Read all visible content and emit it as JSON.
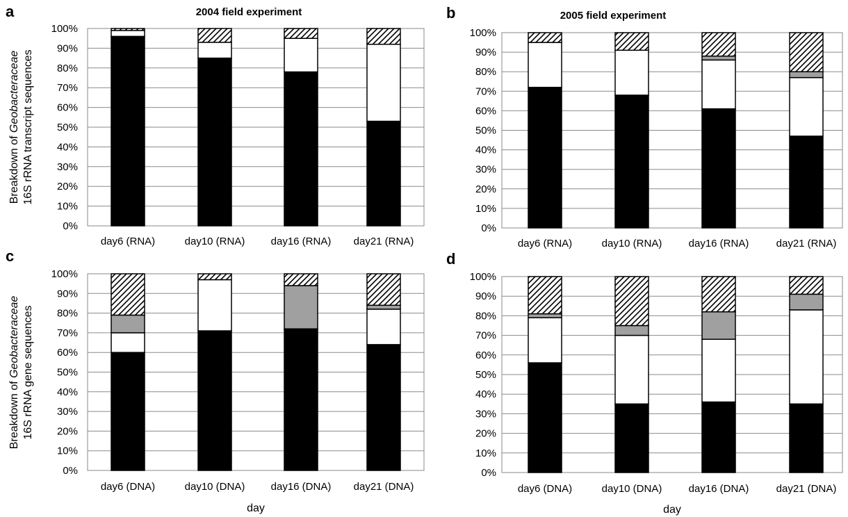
{
  "figure": {
    "ylabel_top": {
      "line1_prefix": "Breakdown of ",
      "line1_italic": "Geobacteraceae",
      "line2": "16S rRNA transcript sequences"
    },
    "ylabel_bottom": {
      "line1_prefix": "Breakdown of ",
      "line1_italic": "Geobacteraceae",
      "line2": "16S rRNA gene sequences"
    }
  },
  "colors": {
    "segment1": "#000000",
    "segment2": "#ffffff",
    "segment3": "#a0a0a0",
    "segment4": "hatch"
  },
  "chart_data": [
    {
      "type": "bar",
      "stacked": true,
      "panel": "a",
      "title": "2004 field experiment",
      "xlabel": "",
      "ylim": [
        0,
        100
      ],
      "yticks": [
        "0%",
        "10%",
        "20%",
        "30%",
        "40%",
        "50%",
        "60%",
        "70%",
        "80%",
        "90%",
        "100%"
      ],
      "categories": [
        "day6 (RNA)",
        "day10 (RNA)",
        "day16 (RNA)",
        "day21 (RNA)"
      ],
      "series": [
        {
          "values": [
            96,
            85,
            78,
            53
          ],
          "fill": "segment1"
        },
        {
          "values": [
            3,
            8,
            17,
            39
          ],
          "fill": "segment2"
        },
        {
          "values": [
            0,
            0,
            0,
            0
          ],
          "fill": "segment3"
        },
        {
          "values": [
            1,
            7,
            5,
            8
          ],
          "fill": "segment4"
        }
      ]
    },
    {
      "type": "bar",
      "stacked": true,
      "panel": "b",
      "title": "2005 field experiment",
      "xlabel": "",
      "ylim": [
        0,
        100
      ],
      "yticks": [
        "0%",
        "10%",
        "20%",
        "30%",
        "40%",
        "50%",
        "60%",
        "70%",
        "80%",
        "90%",
        "100%"
      ],
      "categories": [
        "day6 (RNA)",
        "day10 (RNA)",
        "day16 (RNA)",
        "day21 (RNA)"
      ],
      "series": [
        {
          "values": [
            72,
            68,
            61,
            47
          ],
          "fill": "segment1"
        },
        {
          "values": [
            23,
            23,
            25,
            30
          ],
          "fill": "segment2"
        },
        {
          "values": [
            0,
            0,
            2,
            3
          ],
          "fill": "segment3"
        },
        {
          "values": [
            5,
            9,
            12,
            20
          ],
          "fill": "segment4"
        }
      ]
    },
    {
      "type": "bar",
      "stacked": true,
      "panel": "c",
      "title": "",
      "xlabel": "day",
      "ylim": [
        0,
        100
      ],
      "yticks": [
        "0%",
        "10%",
        "20%",
        "30%",
        "40%",
        "50%",
        "60%",
        "70%",
        "80%",
        "90%",
        "100%"
      ],
      "categories": [
        "day6 (DNA)",
        "day10 (DNA)",
        "day16 (DNA)",
        "day21 (DNA)"
      ],
      "series": [
        {
          "values": [
            60,
            71,
            72,
            64
          ],
          "fill": "segment1"
        },
        {
          "values": [
            10,
            26,
            0,
            18
          ],
          "fill": "segment2"
        },
        {
          "values": [
            9,
            0,
            22,
            2
          ],
          "fill": "segment3"
        },
        {
          "values": [
            21,
            3,
            6,
            16
          ],
          "fill": "segment4"
        }
      ]
    },
    {
      "type": "bar",
      "stacked": true,
      "panel": "d",
      "title": "",
      "xlabel": "day",
      "ylim": [
        0,
        100
      ],
      "yticks": [
        "0%",
        "10%",
        "20%",
        "30%",
        "40%",
        "50%",
        "60%",
        "70%",
        "80%",
        "90%",
        "100%"
      ],
      "categories": [
        "day6 (DNA)",
        "day10 (DNA)",
        "day16 (DNA)",
        "day21 (DNA)"
      ],
      "series": [
        {
          "values": [
            56,
            35,
            36,
            35
          ],
          "fill": "segment1"
        },
        {
          "values": [
            23,
            35,
            32,
            48
          ],
          "fill": "segment2"
        },
        {
          "values": [
            2,
            5,
            14,
            8
          ],
          "fill": "segment3"
        },
        {
          "values": [
            19,
            25,
            18,
            9
          ],
          "fill": "segment4"
        }
      ]
    }
  ]
}
